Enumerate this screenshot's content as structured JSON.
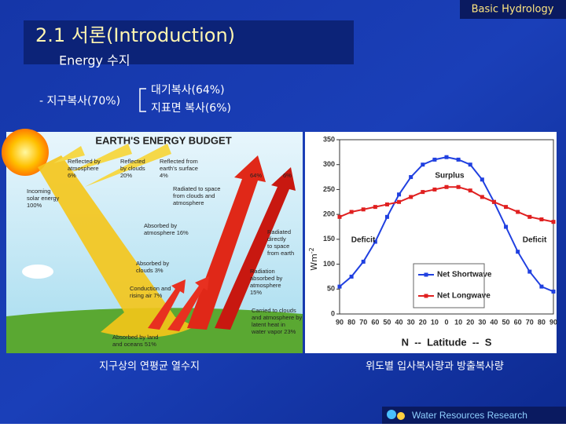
{
  "header": {
    "badge": "Basic Hydrology",
    "title": "2.1 서론(Introduction)",
    "subtitle": "Energy 수지"
  },
  "bullet": {
    "main": "- 지구복사(70%)",
    "branches": [
      "대기복사(64%)",
      "지표면 복사(6%)"
    ]
  },
  "diagram": {
    "title": "EARTH'S ENERGY BUDGET",
    "labels": [
      [
        "Reflected by",
        "atmosphere",
        "6%"
      ],
      [
        "Reflected",
        "by clouds",
        "20%"
      ],
      [
        "Reflected from",
        "earth's surface",
        "4%"
      ],
      [
        "64%"
      ],
      [
        "6%"
      ],
      [
        "Incoming",
        "solar energy",
        "100%"
      ],
      [
        "Radiated to space",
        "from clouds and",
        "atmosphere"
      ],
      [
        "Absorbed by",
        "atmosphere 16%"
      ],
      [
        "Radiated",
        "directly",
        "to space",
        "from earth"
      ],
      [
        "Absorbed by",
        "clouds 3%"
      ],
      [
        "Radiation",
        "absorbed by",
        "atmosphere",
        "15%"
      ],
      [
        "Conduction and",
        "rising air 7%"
      ],
      [
        "Carried to clouds",
        "and atmosphere by",
        "latent heat in",
        "water vapor 23%"
      ],
      [
        "Absorbed by land",
        "and oceans 51%"
      ]
    ],
    "caption": "지구상의 연평균 열수지"
  },
  "chart_data": {
    "type": "line",
    "y_label": "Wm",
    "y_label_exponent": "-2",
    "x_label": "N  --  Latitude  --  S",
    "categories": [
      "90",
      "80",
      "70",
      "60",
      "50",
      "40",
      "30",
      "20",
      "10",
      "0",
      "10",
      "20",
      "30",
      "40",
      "50",
      "60",
      "70",
      "80",
      "90"
    ],
    "series": [
      {
        "name": "Net Shortwave",
        "color": "#2040e0",
        "values": [
          55,
          75,
          105,
          145,
          195,
          240,
          275,
          300,
          310,
          315,
          310,
          300,
          270,
          225,
          175,
          125,
          85,
          55,
          45
        ]
      },
      {
        "name": "Net Longwave",
        "color": "#e02020",
        "values": [
          195,
          205,
          210,
          215,
          220,
          225,
          235,
          245,
          250,
          255,
          255,
          248,
          235,
          225,
          215,
          205,
          195,
          190,
          185
        ]
      }
    ],
    "ylim": [
      0,
      350
    ],
    "yticks": [
      0,
      50,
      100,
      150,
      200,
      250,
      300,
      350
    ],
    "annotations": [
      "Surplus",
      "Deficit",
      "Deficit"
    ],
    "caption": "위도별 입사복사량과 방출복사량"
  },
  "footer": "Water Resources Research"
}
